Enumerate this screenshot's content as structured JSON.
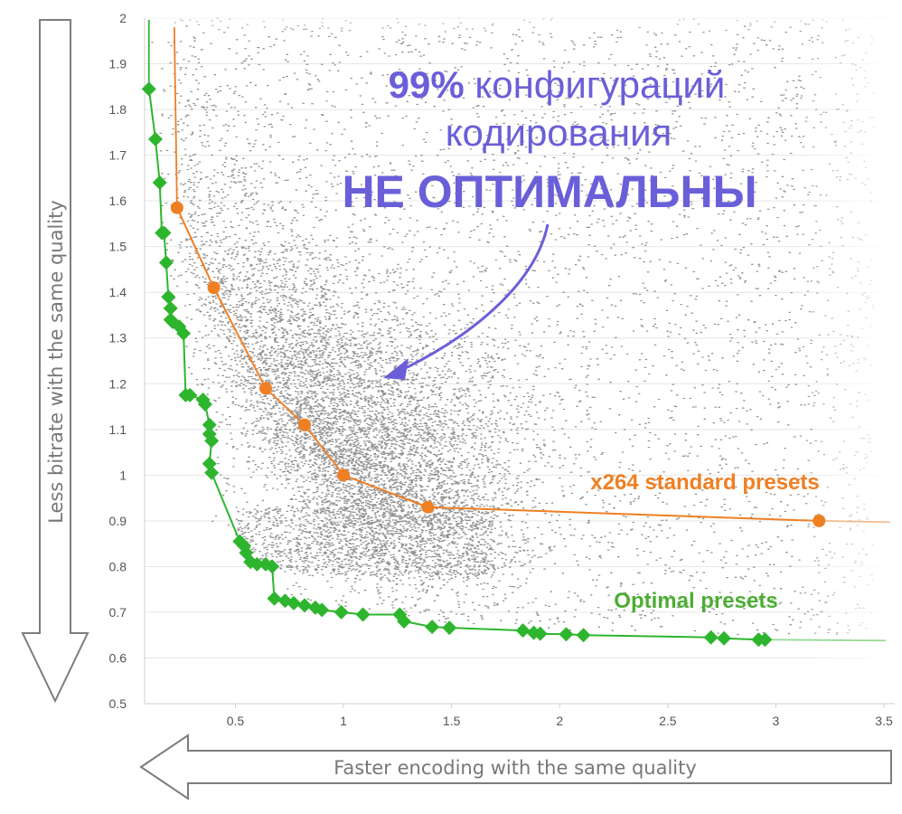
{
  "chart_data": {
    "type": "scatter",
    "title": "",
    "xlabel": "Faster encoding with the same quality",
    "ylabel": "Less bitrate with the same quality",
    "xlim": [
      0.08,
      3.55
    ],
    "ylim": [
      0.5,
      2.0
    ],
    "x_ticks": [
      "0.5",
      "1",
      "1.5",
      "2",
      "2.5",
      "3",
      "3.5"
    ],
    "y_ticks": [
      "0.5",
      "0.6",
      "0.7",
      "0.8",
      "0.9",
      "1",
      "1.1",
      "1.2",
      "1.3",
      "1.4",
      "1.5",
      "1.6",
      "1.7",
      "1.8",
      "1.9",
      "2"
    ],
    "grid": true,
    "series": [
      {
        "name": "x264 standard presets",
        "kind": "line+markers",
        "color": "#f07f23",
        "x": [
          0.23,
          0.4,
          0.64,
          0.82,
          1.0,
          1.39,
          3.2
        ],
        "y": [
          1.585,
          1.41,
          1.19,
          1.11,
          1.0,
          0.93,
          0.9
        ]
      },
      {
        "name": "Optimal presets",
        "kind": "line+markers",
        "color": "#2eb52e",
        "x": [
          0.1,
          0.13,
          0.15,
          0.16,
          0.17,
          0.18,
          0.19,
          0.2,
          0.2,
          0.21,
          0.24,
          0.26,
          0.27,
          0.29,
          0.35,
          0.36,
          0.38,
          0.38,
          0.39,
          0.38,
          0.39,
          0.52,
          0.54,
          0.55,
          0.57,
          0.6,
          0.64,
          0.67,
          0.68,
          0.73,
          0.77,
          0.82,
          0.87,
          0.9,
          0.99,
          1.09,
          1.26,
          1.28,
          1.41,
          1.49,
          1.83,
          1.88,
          1.91,
          2.03,
          2.11,
          2.7,
          2.76,
          2.92,
          2.95
        ],
        "y": [
          1.845,
          1.735,
          1.64,
          1.53,
          1.53,
          1.465,
          1.39,
          1.365,
          1.34,
          1.335,
          1.325,
          1.31,
          1.175,
          1.175,
          1.165,
          1.155,
          1.11,
          1.09,
          1.075,
          1.025,
          1.005,
          0.855,
          0.845,
          0.83,
          0.81,
          0.805,
          0.805,
          0.8,
          0.73,
          0.725,
          0.72,
          0.715,
          0.71,
          0.705,
          0.7,
          0.695,
          0.695,
          0.68,
          0.668,
          0.666,
          0.66,
          0.655,
          0.653,
          0.652,
          0.65,
          0.645,
          0.643,
          0.64,
          0.64
        ]
      }
    ],
    "annotations": {
      "line1_pct": "99%",
      "line1_rest": " конфигураций",
      "line2": "кодирования",
      "line3": "НЕ ОПТИМАЛЬНЫ",
      "x264_label": "x264 standard presets",
      "optimal_label": "Optimal presets"
    }
  },
  "colors": {
    "orange": "#f07f23",
    "green": "#2eb52e",
    "purple": "#6a5fd8",
    "scatter": "#6e6e6e",
    "grid": "#e6e6e6",
    "tick": "#555555"
  }
}
